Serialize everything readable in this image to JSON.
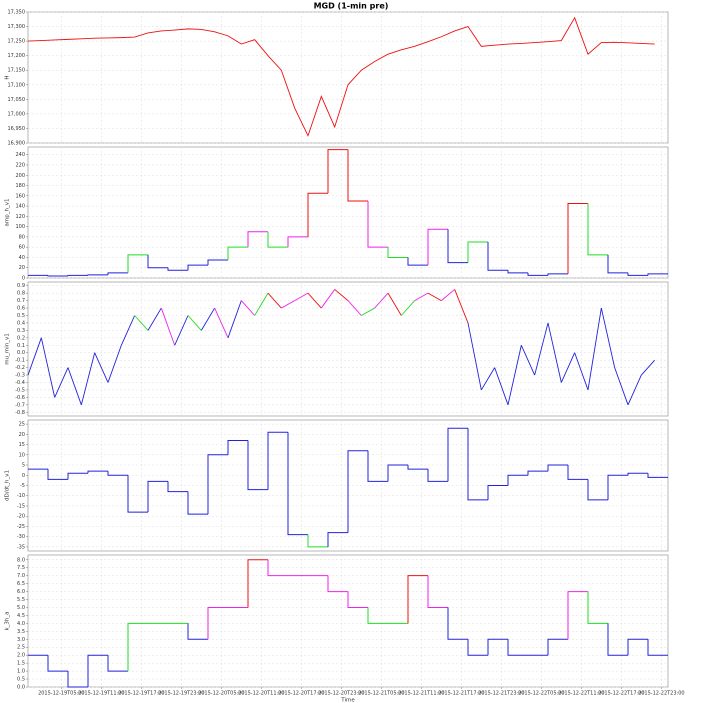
{
  "chart_data": [
    {
      "type": "line",
      "title": "MGD (1-min pre)",
      "ylabel": "H",
      "color": "#ee1111",
      "xlim": [
        "2015-12-19T00:00",
        "2015-12-23T00:00"
      ],
      "x": [
        "2015-12-19T00:00",
        "2015-12-19T02:00",
        "2015-12-19T04:00",
        "2015-12-19T06:00",
        "2015-12-19T08:00",
        "2015-12-19T10:00",
        "2015-12-19T12:00",
        "2015-12-19T14:00",
        "2015-12-19T16:00",
        "2015-12-19T18:00",
        "2015-12-19T20:00",
        "2015-12-19T22:00",
        "2015-12-20T00:00",
        "2015-12-20T02:00",
        "2015-12-20T04:00",
        "2015-12-20T06:00",
        "2015-12-20T08:00",
        "2015-12-20T10:00",
        "2015-12-20T12:00",
        "2015-12-20T14:00",
        "2015-12-20T16:00",
        "2015-12-20T18:00",
        "2015-12-20T20:00",
        "2015-12-20T22:00",
        "2015-12-21T00:00",
        "2015-12-21T02:00",
        "2015-12-21T04:00",
        "2015-12-21T06:00",
        "2015-12-21T08:00",
        "2015-12-21T10:00",
        "2015-12-21T12:00",
        "2015-12-21T14:00",
        "2015-12-21T16:00",
        "2015-12-21T18:00",
        "2015-12-21T20:00",
        "2015-12-21T22:00",
        "2015-12-22T00:00",
        "2015-12-22T02:00",
        "2015-12-22T04:00",
        "2015-12-22T06:00",
        "2015-12-22T08:00",
        "2015-12-22T10:00",
        "2015-12-22T12:00",
        "2015-12-22T14:00",
        "2015-12-22T16:00",
        "2015-12-22T18:00",
        "2015-12-22T20:00",
        "2015-12-22T22:00"
      ],
      "values": [
        17250,
        17252,
        17254,
        17256,
        17258,
        17260,
        17261,
        17262,
        17264,
        17278,
        17285,
        17288,
        17292,
        17290,
        17282,
        17268,
        17240,
        17255,
        17200,
        17150,
        17020,
        16925,
        17060,
        16955,
        17100,
        17150,
        17180,
        17205,
        17220,
        17232,
        17248,
        17265,
        17285,
        17300,
        17232,
        17236,
        17240,
        17242,
        17245,
        17248,
        17252,
        17330,
        17205,
        17245,
        17246,
        17244,
        17242,
        17240
      ],
      "ylim": [
        16900,
        17350
      ],
      "yticks": [
        {
          "value": 16900,
          "label": "16,900"
        },
        {
          "value": 16950,
          "label": "16,950"
        },
        {
          "value": 17000,
          "label": "17,000"
        },
        {
          "value": 17050,
          "label": "17,050"
        },
        {
          "value": 17100,
          "label": "17,100"
        },
        {
          "value": 17150,
          "label": "17,150"
        },
        {
          "value": 17200,
          "label": "17,200"
        },
        {
          "value": 17250,
          "label": "17,250"
        },
        {
          "value": 17300,
          "label": "17,300"
        },
        {
          "value": 17350,
          "label": "17,350"
        }
      ]
    },
    {
      "type": "step",
      "ylabel": "amp_h_v1",
      "xlim": [
        "2015-12-19T00:00",
        "2015-12-23T00:00"
      ],
      "x": [
        "2015-12-19T00:00",
        "2015-12-19T03:00",
        "2015-12-19T06:00",
        "2015-12-19T09:00",
        "2015-12-19T12:00",
        "2015-12-19T15:00",
        "2015-12-19T18:00",
        "2015-12-19T21:00",
        "2015-12-20T00:00",
        "2015-12-20T03:00",
        "2015-12-20T06:00",
        "2015-12-20T09:00",
        "2015-12-20T12:00",
        "2015-12-20T15:00",
        "2015-12-20T18:00",
        "2015-12-20T21:00",
        "2015-12-21T00:00",
        "2015-12-21T03:00",
        "2015-12-21T06:00",
        "2015-12-21T09:00",
        "2015-12-21T12:00",
        "2015-12-21T15:00",
        "2015-12-21T18:00",
        "2015-12-21T21:00",
        "2015-12-22T00:00",
        "2015-12-22T03:00",
        "2015-12-22T06:00",
        "2015-12-22T09:00",
        "2015-12-22T12:00",
        "2015-12-22T15:00",
        "2015-12-22T18:00",
        "2015-12-22T21:00"
      ],
      "values": [
        5,
        4,
        5,
        6,
        10,
        45,
        20,
        15,
        25,
        35,
        60,
        90,
        60,
        80,
        165,
        250,
        150,
        60,
        40,
        25,
        95,
        30,
        70,
        15,
        10,
        5,
        8,
        145,
        45,
        10,
        5,
        8
      ],
      "colors": [
        "#2222dd",
        "#2222dd",
        "#2222dd",
        "#2222dd",
        "#2222dd",
        "#22dd22",
        "#2222dd",
        "#2222dd",
        "#2222dd",
        "#2222dd",
        "#22dd22",
        "#ee22ee",
        "#22dd22",
        "#ee22ee",
        "#ee1111",
        "#ee1111",
        "#ee1111",
        "#ee22ee",
        "#22dd22",
        "#2222dd",
        "#ee22ee",
        "#2222dd",
        "#22dd22",
        "#2222dd",
        "#2222dd",
        "#2222dd",
        "#2222dd",
        "#ee1111",
        "#22dd22",
        "#2222dd",
        "#2222dd",
        "#2222dd"
      ],
      "ylim": [
        0,
        255
      ],
      "yticks": [
        0,
        20,
        40,
        60,
        80,
        100,
        120,
        140,
        160,
        180,
        200,
        220,
        240
      ]
    },
    {
      "type": "line",
      "ylabel": "mu_min_v1",
      "xlim": [
        "2015-12-19T00:00",
        "2015-12-23T00:00"
      ],
      "x": [
        "2015-12-19T00:00",
        "2015-12-19T02:00",
        "2015-12-19T04:00",
        "2015-12-19T06:00",
        "2015-12-19T08:00",
        "2015-12-19T10:00",
        "2015-12-19T12:00",
        "2015-12-19T14:00",
        "2015-12-19T16:00",
        "2015-12-19T18:00",
        "2015-12-19T20:00",
        "2015-12-19T22:00",
        "2015-12-20T00:00",
        "2015-12-20T02:00",
        "2015-12-20T04:00",
        "2015-12-20T06:00",
        "2015-12-20T08:00",
        "2015-12-20T10:00",
        "2015-12-20T12:00",
        "2015-12-20T14:00",
        "2015-12-20T16:00",
        "2015-12-20T18:00",
        "2015-12-20T20:00",
        "2015-12-20T22:00",
        "2015-12-21T00:00",
        "2015-12-21T02:00",
        "2015-12-21T04:00",
        "2015-12-21T06:00",
        "2015-12-21T08:00",
        "2015-12-21T10:00",
        "2015-12-21T12:00",
        "2015-12-21T14:00",
        "2015-12-21T16:00",
        "2015-12-21T18:00",
        "2015-12-21T20:00",
        "2015-12-21T22:00",
        "2015-12-22T00:00",
        "2015-12-22T02:00",
        "2015-12-22T04:00",
        "2015-12-22T06:00",
        "2015-12-22T08:00",
        "2015-12-22T10:00",
        "2015-12-22T12:00",
        "2015-12-22T14:00",
        "2015-12-22T16:00",
        "2015-12-22T18:00",
        "2015-12-22T20:00",
        "2015-12-22T22:00"
      ],
      "values": [
        -0.3,
        0.2,
        -0.6,
        -0.2,
        -0.7,
        0.0,
        -0.4,
        0.1,
        0.5,
        0.3,
        0.6,
        0.1,
        0.5,
        0.3,
        0.6,
        0.2,
        0.7,
        0.5,
        0.8,
        0.6,
        0.7,
        0.8,
        0.6,
        0.85,
        0.7,
        0.5,
        0.6,
        0.8,
        0.5,
        0.7,
        0.8,
        0.7,
        0.85,
        0.4,
        -0.5,
        -0.2,
        -0.7,
        0.1,
        -0.3,
        0.4,
        -0.4,
        0.0,
        -0.5,
        0.6,
        -0.2,
        -0.7,
        -0.3,
        -0.1
      ],
      "colors": [
        "#2222dd",
        "#2222dd",
        "#2222dd",
        "#2222dd",
        "#2222dd",
        "#2222dd",
        "#2222dd",
        "#2222dd",
        "#22dd22",
        "#2222dd",
        "#ee22ee",
        "#2222dd",
        "#22dd22",
        "#2222dd",
        "#ee22ee",
        "#2222dd",
        "#ee22ee",
        "#22dd22",
        "#ee1111",
        "#ee22ee",
        "#ee22ee",
        "#ee1111",
        "#ee22ee",
        "#ee1111",
        "#ee22ee",
        "#22dd22",
        "#ee22ee",
        "#ee1111",
        "#22dd22",
        "#ee22ee",
        "#ee1111",
        "#ee22ee",
        "#ee1111",
        "#2222dd",
        "#2222dd",
        "#2222dd",
        "#2222dd",
        "#2222dd",
        "#2222dd",
        "#2222dd",
        "#2222dd",
        "#2222dd",
        "#2222dd",
        "#2222dd",
        "#2222dd",
        "#2222dd",
        "#2222dd",
        "#2222dd"
      ],
      "ylim": [
        -0.85,
        0.95
      ],
      "yticks": [
        -0.8,
        -0.7,
        -0.6,
        -0.5,
        -0.4,
        -0.3,
        -0.2,
        -0.1,
        {
          "value": 0,
          "label": "0.0"
        },
        0.1,
        0.2,
        0.3,
        0.4,
        0.5,
        0.6,
        0.7,
        0.8,
        0.9
      ]
    },
    {
      "type": "step",
      "ylabel": "dD/dt_h_v1",
      "xlim": [
        "2015-12-19T00:00",
        "2015-12-23T00:00"
      ],
      "x": [
        "2015-12-19T00:00",
        "2015-12-19T03:00",
        "2015-12-19T06:00",
        "2015-12-19T09:00",
        "2015-12-19T12:00",
        "2015-12-19T15:00",
        "2015-12-19T18:00",
        "2015-12-19T21:00",
        "2015-12-20T00:00",
        "2015-12-20T03:00",
        "2015-12-20T06:00",
        "2015-12-20T09:00",
        "2015-12-20T12:00",
        "2015-12-20T15:00",
        "2015-12-20T18:00",
        "2015-12-20T21:00",
        "2015-12-21T00:00",
        "2015-12-21T03:00",
        "2015-12-21T06:00",
        "2015-12-21T09:00",
        "2015-12-21T12:00",
        "2015-12-21T15:00",
        "2015-12-21T18:00",
        "2015-12-21T21:00",
        "2015-12-22T00:00",
        "2015-12-22T03:00",
        "2015-12-22T06:00",
        "2015-12-22T09:00",
        "2015-12-22T12:00",
        "2015-12-22T15:00",
        "2015-12-22T18:00",
        "2015-12-22T21:00"
      ],
      "values": [
        3,
        -2,
        1,
        2,
        0,
        -18,
        -3,
        -8,
        -19,
        10,
        17,
        -7,
        21,
        -29,
        -35,
        -28,
        12,
        -3,
        5,
        3,
        -3,
        23,
        -12,
        -5,
        0,
        2,
        5,
        -2,
        -12,
        0,
        1,
        -1
      ],
      "colors": [
        "#2222dd",
        "#2222dd",
        "#2222dd",
        "#2222dd",
        "#2222dd",
        "#2222dd",
        "#2222dd",
        "#2222dd",
        "#2222dd",
        "#2222dd",
        "#2222dd",
        "#2222dd",
        "#2222dd",
        "#2222dd",
        "#22dd22",
        "#2222dd",
        "#2222dd",
        "#2222dd",
        "#2222dd",
        "#2222dd",
        "#2222dd",
        "#2222dd",
        "#2222dd",
        "#2222dd",
        "#2222dd",
        "#2222dd",
        "#2222dd",
        "#2222dd",
        "#2222dd",
        "#2222dd",
        "#2222dd",
        "#2222dd"
      ],
      "ylim": [
        -37,
        27
      ],
      "yticks": [
        -35,
        -30,
        -25,
        -20,
        -15,
        -10,
        -5,
        0,
        5,
        10,
        15,
        20,
        25
      ]
    },
    {
      "type": "step",
      "ylabel": "k_3h_a",
      "xlabel": "Time",
      "xlim": [
        "2015-12-19T00:00",
        "2015-12-23T00:00"
      ],
      "xticks": [
        "2015-12-19T05:00",
        "2015-12-19T11:00",
        "2015-12-19T17:00",
        "2015-12-19T23:00",
        "2015-12-20T05:00",
        "2015-12-20T11:00",
        "2015-12-20T17:00",
        "2015-12-20T23:00",
        "2015-12-21T05:00",
        "2015-12-21T11:00",
        "2015-12-21T17:00",
        "2015-12-21T23:00",
        "2015-12-22T05:00",
        "2015-12-22T11:00",
        "2015-12-22T17:00",
        "2015-12-22T23:00"
      ],
      "x": [
        "2015-12-19T00:00",
        "2015-12-19T03:00",
        "2015-12-19T06:00",
        "2015-12-19T09:00",
        "2015-12-19T12:00",
        "2015-12-19T15:00",
        "2015-12-19T18:00",
        "2015-12-19T21:00",
        "2015-12-20T00:00",
        "2015-12-20T03:00",
        "2015-12-20T06:00",
        "2015-12-20T09:00",
        "2015-12-20T12:00",
        "2015-12-20T15:00",
        "2015-12-20T18:00",
        "2015-12-20T21:00",
        "2015-12-21T00:00",
        "2015-12-21T03:00",
        "2015-12-21T06:00",
        "2015-12-21T09:00",
        "2015-12-21T12:00",
        "2015-12-21T15:00",
        "2015-12-21T18:00",
        "2015-12-21T21:00",
        "2015-12-22T00:00",
        "2015-12-22T03:00",
        "2015-12-22T06:00",
        "2015-12-22T09:00",
        "2015-12-22T12:00",
        "2015-12-22T15:00",
        "2015-12-22T18:00",
        "2015-12-22T21:00"
      ],
      "values": [
        2,
        1,
        0,
        2,
        1,
        4,
        4,
        4,
        3,
        5,
        5,
        8,
        7,
        7,
        7,
        6,
        5,
        4,
        4,
        7,
        5,
        3,
        2,
        3,
        2,
        2,
        3,
        6,
        4,
        2,
        3,
        2
      ],
      "colors": [
        "#2222dd",
        "#2222dd",
        "#2222dd",
        "#2222dd",
        "#2222dd",
        "#22dd22",
        "#22dd22",
        "#22dd22",
        "#2222dd",
        "#ee22ee",
        "#ee22ee",
        "#ee1111",
        "#ee22ee",
        "#ee22ee",
        "#ee22ee",
        "#ee22ee",
        "#ee22ee",
        "#22dd22",
        "#22dd22",
        "#ee1111",
        "#ee22ee",
        "#2222dd",
        "#2222dd",
        "#2222dd",
        "#2222dd",
        "#2222dd",
        "#2222dd",
        "#ee22ee",
        "#22dd22",
        "#2222dd",
        "#2222dd",
        "#2222dd"
      ],
      "ylim": [
        0,
        8.3
      ],
      "yticks": [
        {
          "value": 0,
          "label": "0.0"
        },
        0.5,
        {
          "value": 1,
          "label": "1.0"
        },
        1.5,
        {
          "value": 2,
          "label": "2.0"
        },
        2.5,
        {
          "value": 3,
          "label": "3.0"
        },
        3.5,
        {
          "value": 4,
          "label": "4.0"
        },
        4.5,
        {
          "value": 5,
          "label": "5.0"
        },
        5.5,
        {
          "value": 6,
          "label": "6.0"
        },
        6.5,
        {
          "value": 7,
          "label": "7.0"
        },
        7.5,
        {
          "value": 8,
          "label": "8.0"
        }
      ]
    }
  ]
}
